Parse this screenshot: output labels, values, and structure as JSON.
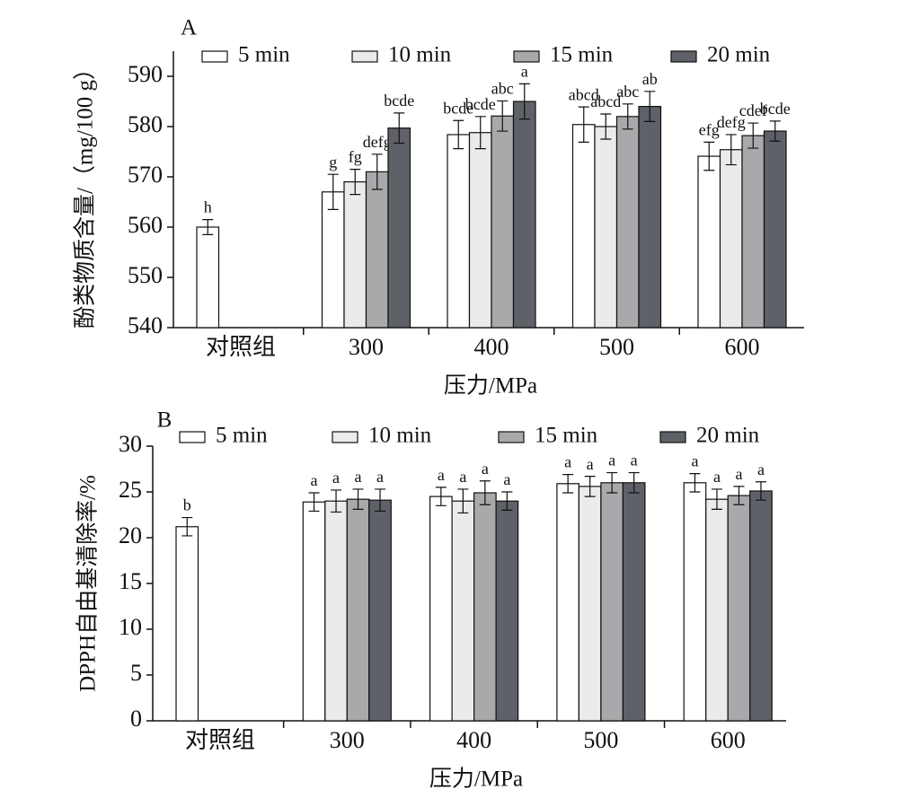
{
  "chart_data": [
    {
      "type": "bar",
      "panel": "A",
      "x_label": "压力/MPa",
      "y_label": "酚类物质含量/（mg/100 g）",
      "categories": [
        "对照组",
        "300",
        "400",
        "500",
        "600"
      ],
      "ylim": [
        540,
        595
      ],
      "yticks": [
        540,
        550,
        560,
        570,
        580,
        590
      ],
      "series": [
        {
          "name": "5 min",
          "color": "#ffffff",
          "values": [
            560,
            567,
            578.4,
            580.4,
            574.1
          ],
          "errors": [
            1.5,
            3.5,
            2.8,
            3.5,
            2.8
          ],
          "letters": [
            "h",
            "g",
            "bcde",
            "abcd",
            "efg"
          ]
        },
        {
          "name": "10 min",
          "color": "#ebebeb",
          "values": [
            null,
            569,
            578.8,
            580,
            575.4
          ],
          "errors": [
            null,
            2.5,
            3.2,
            2.5,
            3
          ],
          "letters": [
            null,
            "fg",
            "bcde",
            "abcd",
            "defg"
          ]
        },
        {
          "name": "15 min",
          "color": "#a9a9ac",
          "values": [
            null,
            571,
            582.1,
            582,
            578.2
          ],
          "errors": [
            null,
            3.5,
            3,
            2.5,
            2.5
          ],
          "letters": [
            null,
            "defg",
            "abc",
            "abc",
            "cdef"
          ]
        },
        {
          "name": "20 min",
          "color": "#5f6168",
          "values": [
            null,
            579.7,
            585,
            584,
            579.1
          ],
          "errors": [
            null,
            3,
            3.5,
            3,
            2
          ],
          "letters": [
            null,
            "bcde",
            "a",
            "ab",
            "bcde"
          ]
        }
      ]
    },
    {
      "type": "bar",
      "panel": "B",
      "x_label": "压力/MPa",
      "y_label": "DPPH自由基清除率/%",
      "categories": [
        "对照组",
        "300",
        "400",
        "500",
        "600"
      ],
      "ylim": [
        0,
        30
      ],
      "yticks": [
        0,
        5,
        10,
        15,
        20,
        25,
        30
      ],
      "series": [
        {
          "name": "5 min",
          "color": "#ffffff",
          "values": [
            21.2,
            23.9,
            24.5,
            25.9,
            26
          ],
          "errors": [
            1,
            1,
            1,
            1,
            1
          ],
          "letters": [
            "b",
            "a",
            "a",
            "a",
            "a"
          ]
        },
        {
          "name": "10 min",
          "color": "#ebebeb",
          "values": [
            null,
            24,
            24,
            25.6,
            24.2
          ],
          "errors": [
            null,
            1.2,
            1.3,
            1.1,
            1.1
          ],
          "letters": [
            null,
            "a",
            "a",
            "a",
            "a"
          ]
        },
        {
          "name": "15 min",
          "color": "#a9a9ac",
          "values": [
            null,
            24.2,
            24.9,
            26,
            24.6
          ],
          "errors": [
            null,
            1.1,
            1.3,
            1.1,
            1
          ],
          "letters": [
            null,
            "a",
            "a",
            "a",
            "a"
          ]
        },
        {
          "name": "20 min",
          "color": "#5f6168",
          "values": [
            null,
            24.1,
            24,
            26,
            25.1
          ],
          "errors": [
            null,
            1.2,
            1,
            1.1,
            1
          ],
          "letters": [
            null,
            "a",
            "a",
            "a",
            "a"
          ]
        }
      ]
    }
  ]
}
